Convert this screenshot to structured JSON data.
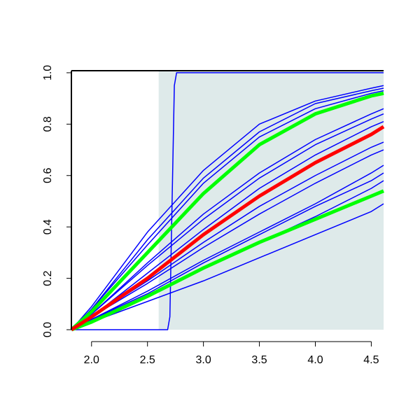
{
  "chart_data": {
    "type": "line",
    "x": [
      1.82,
      2.0,
      2.5,
      3.0,
      3.5,
      4.0,
      4.5,
      4.61
    ],
    "xlim": [
      1.82,
      4.61
    ],
    "ylim": [
      0,
      1.008
    ],
    "xticks": [
      {
        "value": 2.0,
        "label": "2.0"
      },
      2.5,
      {
        "value": 3.0,
        "label": "3.0"
      },
      3.5,
      {
        "value": 4.0,
        "label": "4.0"
      },
      4.5
    ],
    "yticks": [
      {
        "value": 0,
        "label": "0.0"
      },
      0.2,
      0.4,
      0.6,
      0.8,
      {
        "value": 1.0,
        "label": "1.0"
      }
    ],
    "shaded_from": 2.6,
    "shade_color": "#deeaea",
    "series": [
      {
        "color": "#0000ff",
        "line_width": 1.5,
        "x": [
          1.82,
          2.68,
          2.7,
          2.72,
          2.74,
          2.76,
          4.61
        ],
        "values": [
          0,
          0,
          0.05,
          0.5,
          0.95,
          1,
          1
        ]
      },
      {
        "color": "#0000ff",
        "line_width": 1.5,
        "values": [
          0,
          0.09,
          0.38,
          0.62,
          0.8,
          0.89,
          0.94,
          0.95
        ]
      },
      {
        "color": "#0000ff",
        "line_width": 1.5,
        "values": [
          0,
          0.08,
          0.35,
          0.59,
          0.77,
          0.88,
          0.93,
          0.94
        ]
      },
      {
        "color": "#0000ff",
        "line_width": 1.5,
        "values": [
          0,
          0.08,
          0.33,
          0.57,
          0.75,
          0.86,
          0.92,
          0.93
        ]
      },
      {
        "color": "#0000ff",
        "line_width": 1.5,
        "values": [
          0,
          0.06,
          0.26,
          0.45,
          0.61,
          0.74,
          0.84,
          0.86
        ]
      },
      {
        "color": "#0000ff",
        "line_width": 1.5,
        "values": [
          0,
          0.06,
          0.25,
          0.43,
          0.59,
          0.72,
          0.82,
          0.84
        ]
      },
      {
        "color": "#0000ff",
        "line_width": 1.5,
        "values": [
          0,
          0.05,
          0.22,
          0.39,
          0.55,
          0.68,
          0.79,
          0.81
        ]
      },
      {
        "color": "#0000ff",
        "line_width": 1.5,
        "values": [
          0,
          0.05,
          0.19,
          0.34,
          0.48,
          0.6,
          0.71,
          0.73
        ]
      },
      {
        "color": "#0000ff",
        "line_width": 1.5,
        "values": [
          0,
          0.05,
          0.18,
          0.32,
          0.45,
          0.57,
          0.68,
          0.7
        ]
      },
      {
        "color": "#0000ff",
        "line_width": 1.5,
        "values": [
          0,
          0.04,
          0.15,
          0.27,
          0.38,
          0.49,
          0.61,
          0.64
        ]
      },
      {
        "color": "#0000ff",
        "line_width": 1.5,
        "values": [
          0,
          0.04,
          0.14,
          0.26,
          0.37,
          0.48,
          0.58,
          0.61
        ]
      },
      {
        "color": "#0000ff",
        "line_width": 1.5,
        "values": [
          0,
          0.04,
          0.13,
          0.24,
          0.34,
          0.44,
          0.55,
          0.58
        ]
      },
      {
        "color": "#0000ff",
        "line_width": 1.5,
        "values": [
          0,
          0.03,
          0.11,
          0.19,
          0.28,
          0.37,
          0.46,
          0.49
        ]
      },
      {
        "color": "#00ff00",
        "line_width": 5,
        "values": [
          0,
          0.07,
          0.3,
          0.53,
          0.72,
          0.84,
          0.91,
          0.92
        ]
      },
      {
        "color": "#00ff00",
        "line_width": 5,
        "values": [
          0,
          0.03,
          0.13,
          0.24,
          0.34,
          0.43,
          0.52,
          0.54
        ]
      },
      {
        "color": "#ff0000",
        "line_width": 5,
        "values": [
          0,
          0.05,
          0.2,
          0.37,
          0.52,
          0.65,
          0.76,
          0.79
        ]
      }
    ]
  }
}
